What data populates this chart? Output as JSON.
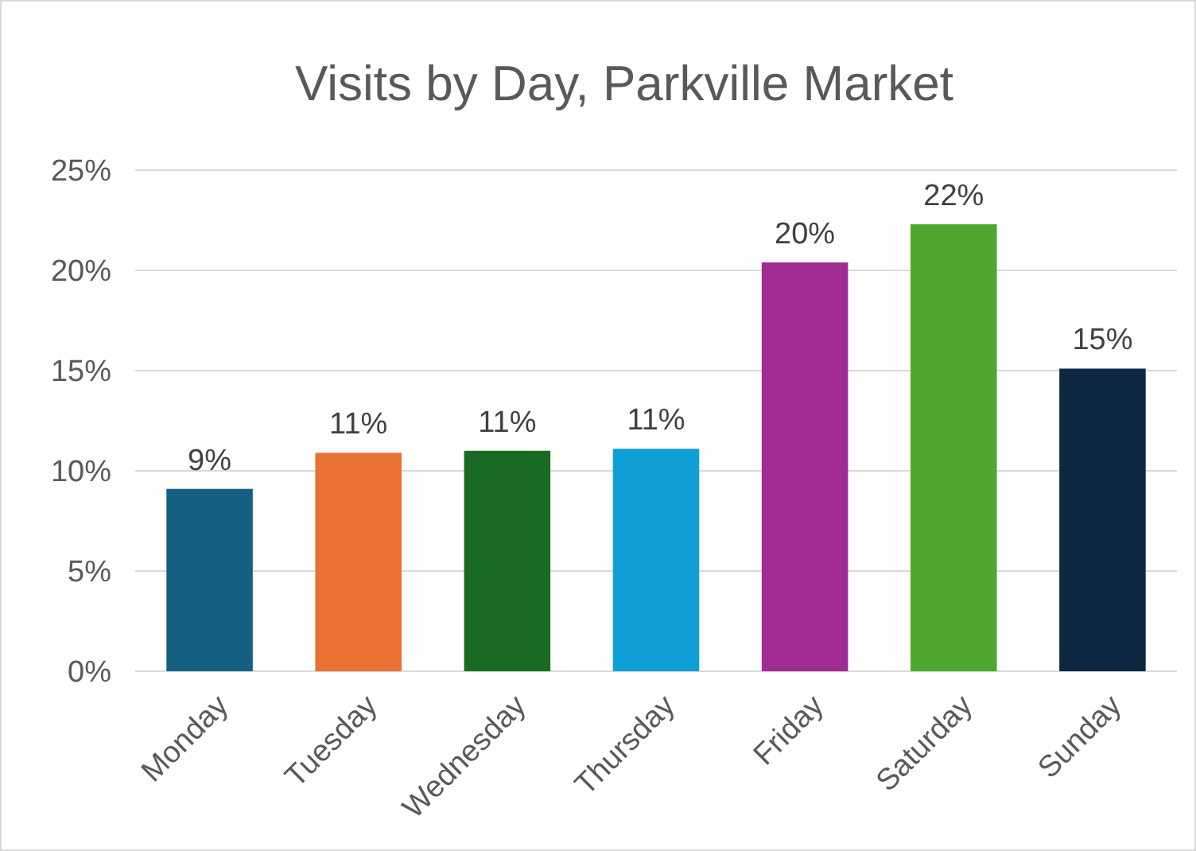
{
  "chart_data": {
    "type": "bar",
    "title": "Visits by Day, Parkville Market",
    "categories": [
      "Monday",
      "Tuesday",
      "Wednesday",
      "Thursday",
      "Friday",
      "Saturday",
      "Sunday"
    ],
    "values": [
      9.1,
      10.9,
      11.0,
      11.1,
      20.4,
      22.3,
      15.1
    ],
    "colors": [
      "#156082",
      "#e97132",
      "#196b24",
      "#0f9ed5",
      "#a02b93",
      "#4ea72e",
      "#0e2841"
    ],
    "value_labels": [
      "9%",
      "11%",
      "11%",
      "11%",
      "20%",
      "22%",
      "15%"
    ],
    "ylim": [
      0,
      25
    ],
    "yticks": [
      {
        "value": 0,
        "label": "0%"
      },
      {
        "value": 5,
        "label": "5%"
      },
      {
        "value": 10,
        "label": "10%"
      },
      {
        "value": 15,
        "label": "15%"
      },
      {
        "value": 20,
        "label": "20%"
      },
      {
        "value": 25,
        "label": "25%"
      }
    ],
    "grid": "y"
  }
}
